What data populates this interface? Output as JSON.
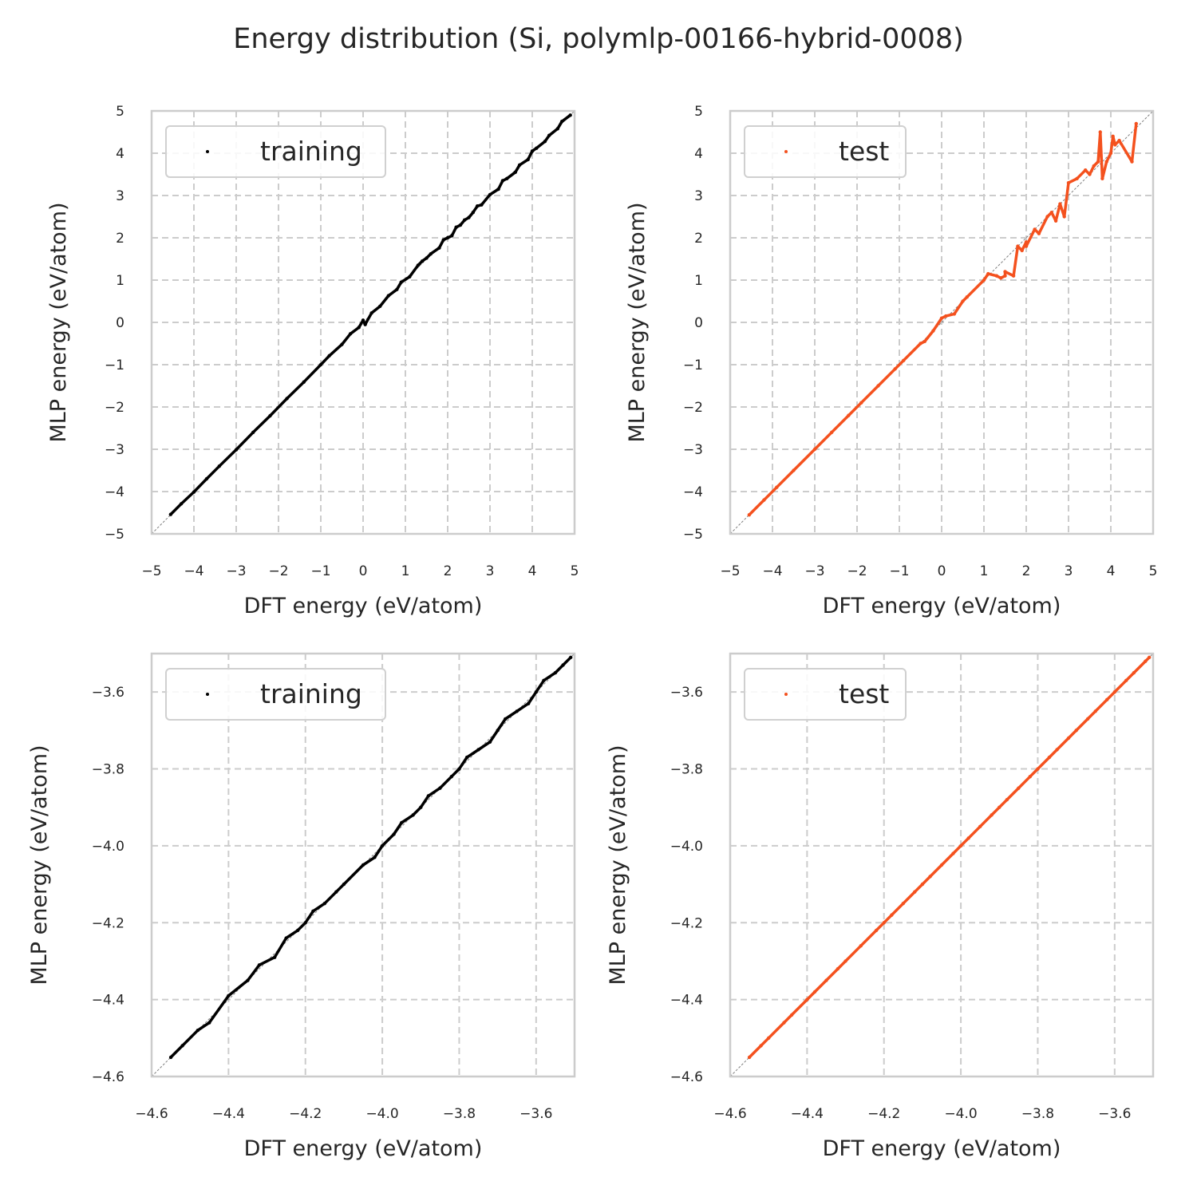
{
  "figure": {
    "title": "Energy distribution (Si, polymlp-00166-hybrid-0008)"
  },
  "colors": {
    "training": "#000000",
    "test": "#f4511e",
    "grid": "#cccccc",
    "frame": "#cccccc",
    "diagonal": "#808080"
  },
  "chart_data": [
    {
      "type": "scatter",
      "xlabel": "DFT energy (eV/atom)",
      "ylabel": "MLP energy (eV/atom)",
      "xlim": [
        -5,
        5
      ],
      "ylim": [
        -5,
        5
      ],
      "xticks": [
        -5,
        -4,
        -3,
        -2,
        -1,
        0,
        1,
        2,
        3,
        4,
        5
      ],
      "yticks": [
        -5,
        -4,
        -3,
        -2,
        -1,
        0,
        1,
        2,
        3,
        4,
        5
      ],
      "xtick_labels": [
        "−5",
        "−4",
        "−3",
        "−2",
        "−1",
        "0",
        "1",
        "2",
        "3",
        "4",
        "5"
      ],
      "ytick_labels": [
        "−5",
        "−4",
        "−3",
        "−2",
        "−1",
        "0",
        "1",
        "2",
        "3",
        "4",
        "5"
      ],
      "grid": true,
      "legend_position": "top-left",
      "series": [
        {
          "name": "training",
          "color": "#000000",
          "points": [
            [
              -4.55,
              -4.54
            ],
            [
              -4.3,
              -4.29
            ],
            [
              -4.0,
              -4.01
            ],
            [
              -3.7,
              -3.7
            ],
            [
              -3.4,
              -3.4
            ],
            [
              -3.0,
              -3.01
            ],
            [
              -2.6,
              -2.6
            ],
            [
              -2.2,
              -2.21
            ],
            [
              -1.8,
              -1.8
            ],
            [
              -1.4,
              -1.41
            ],
            [
              -1.0,
              -1.0
            ],
            [
              -0.8,
              -0.79
            ],
            [
              -0.5,
              -0.52
            ],
            [
              -0.3,
              -0.27
            ],
            [
              -0.1,
              -0.12
            ],
            [
              0.0,
              0.05
            ],
            [
              0.05,
              -0.05
            ],
            [
              0.2,
              0.22
            ],
            [
              0.4,
              0.38
            ],
            [
              0.6,
              0.63
            ],
            [
              0.8,
              0.78
            ],
            [
              0.9,
              0.95
            ],
            [
              1.1,
              1.08
            ],
            [
              1.3,
              1.35
            ],
            [
              1.4,
              1.45
            ],
            [
              1.5,
              1.52
            ],
            [
              1.6,
              1.62
            ],
            [
              1.8,
              1.76
            ],
            [
              1.9,
              1.95
            ],
            [
              2.0,
              2.0
            ],
            [
              2.1,
              2.05
            ],
            [
              2.2,
              2.25
            ],
            [
              2.3,
              2.3
            ],
            [
              2.4,
              2.42
            ],
            [
              2.5,
              2.48
            ],
            [
              2.6,
              2.6
            ],
            [
              2.7,
              2.75
            ],
            [
              2.8,
              2.78
            ],
            [
              3.0,
              3.02
            ],
            [
              3.2,
              3.15
            ],
            [
              3.3,
              3.35
            ],
            [
              3.4,
              3.4
            ],
            [
              3.6,
              3.55
            ],
            [
              3.7,
              3.72
            ],
            [
              3.9,
              3.85
            ],
            [
              4.0,
              4.05
            ],
            [
              4.1,
              4.12
            ],
            [
              4.3,
              4.28
            ],
            [
              4.4,
              4.42
            ],
            [
              4.6,
              4.58
            ],
            [
              4.7,
              4.75
            ],
            [
              4.9,
              4.9
            ]
          ]
        }
      ]
    },
    {
      "type": "scatter",
      "xlabel": "DFT energy (eV/atom)",
      "ylabel": "MLP energy (eV/atom)",
      "xlim": [
        -5,
        5
      ],
      "ylim": [
        -5,
        5
      ],
      "xticks": [
        -5,
        -4,
        -3,
        -2,
        -1,
        0,
        1,
        2,
        3,
        4,
        5
      ],
      "yticks": [
        -5,
        -4,
        -3,
        -2,
        -1,
        0,
        1,
        2,
        3,
        4,
        5
      ],
      "xtick_labels": [
        "−5",
        "−4",
        "−3",
        "−2",
        "−1",
        "0",
        "1",
        "2",
        "3",
        "4",
        "5"
      ],
      "ytick_labels": [
        "−5",
        "−4",
        "−3",
        "−2",
        "−1",
        "0",
        "1",
        "2",
        "3",
        "4",
        "5"
      ],
      "grid": true,
      "legend_position": "top-left",
      "series": [
        {
          "name": "test",
          "color": "#f4511e",
          "points": [
            [
              -4.55,
              -4.55
            ],
            [
              -4.2,
              -4.2
            ],
            [
              -3.9,
              -3.9
            ],
            [
              -3.5,
              -3.5
            ],
            [
              -3.0,
              -3.0
            ],
            [
              -2.6,
              -2.6
            ],
            [
              -2.2,
              -2.2
            ],
            [
              -1.9,
              -1.9
            ],
            [
              -1.5,
              -1.5
            ],
            [
              -1.1,
              -1.1
            ],
            [
              -0.9,
              -0.9
            ],
            [
              -0.5,
              -0.5
            ],
            [
              -0.4,
              -0.45
            ],
            [
              -0.2,
              -0.2
            ],
            [
              0.0,
              0.1
            ],
            [
              0.1,
              0.15
            ],
            [
              0.3,
              0.2
            ],
            [
              0.5,
              0.5
            ],
            [
              0.6,
              0.6
            ],
            [
              1.0,
              1.0
            ],
            [
              1.1,
              1.15
            ],
            [
              1.3,
              1.1
            ],
            [
              1.4,
              1.05
            ],
            [
              1.5,
              1.1
            ],
            [
              1.5,
              1.2
            ],
            [
              1.7,
              1.1
            ],
            [
              1.8,
              1.8
            ],
            [
              1.9,
              1.7
            ],
            [
              2.0,
              1.9
            ],
            [
              2.0,
              1.8
            ],
            [
              2.2,
              2.2
            ],
            [
              2.3,
              2.1
            ],
            [
              2.5,
              2.5
            ],
            [
              2.6,
              2.6
            ],
            [
              2.7,
              2.4
            ],
            [
              2.8,
              2.8
            ],
            [
              2.9,
              2.5
            ],
            [
              3.0,
              3.3
            ],
            [
              3.2,
              3.4
            ],
            [
              3.4,
              3.6
            ],
            [
              3.5,
              3.5
            ],
            [
              3.6,
              3.7
            ],
            [
              3.7,
              3.8
            ],
            [
              3.75,
              4.5
            ],
            [
              3.8,
              3.4
            ],
            [
              3.9,
              3.8
            ],
            [
              4.0,
              4.0
            ],
            [
              4.05,
              4.4
            ],
            [
              4.1,
              4.2
            ],
            [
              4.2,
              4.3
            ],
            [
              4.5,
              3.8
            ],
            [
              4.6,
              4.7
            ]
          ]
        }
      ]
    },
    {
      "type": "scatter",
      "xlabel": "DFT energy (eV/atom)",
      "ylabel": "MLP energy (eV/atom)",
      "xlim": [
        -4.6,
        -3.5
      ],
      "ylim": [
        -4.6,
        -3.5
      ],
      "xticks": [
        -4.6,
        -4.4,
        -4.2,
        -4.0,
        -3.8,
        -3.6
      ],
      "yticks": [
        -4.6,
        -4.4,
        -4.2,
        -4.0,
        -3.8,
        -3.6
      ],
      "xtick_labels": [
        "−4.6",
        "−4.4",
        "−4.2",
        "−4.0",
        "−3.8",
        "−3.6"
      ],
      "ytick_labels": [
        "−4.6",
        "−4.4",
        "−4.2",
        "−4.0",
        "−3.8",
        "−3.6"
      ],
      "grid": true,
      "legend_position": "top-left",
      "series": [
        {
          "name": "training",
          "color": "#000000",
          "points": [
            [
              -4.55,
              -4.55
            ],
            [
              -4.52,
              -4.52
            ],
            [
              -4.48,
              -4.48
            ],
            [
              -4.45,
              -4.46
            ],
            [
              -4.4,
              -4.39
            ],
            [
              -4.35,
              -4.35
            ],
            [
              -4.32,
              -4.31
            ],
            [
              -4.28,
              -4.29
            ],
            [
              -4.25,
              -4.24
            ],
            [
              -4.22,
              -4.22
            ],
            [
              -4.2,
              -4.2
            ],
            [
              -4.18,
              -4.17
            ],
            [
              -4.15,
              -4.15
            ],
            [
              -4.12,
              -4.12
            ],
            [
              -4.1,
              -4.1
            ],
            [
              -4.05,
              -4.05
            ],
            [
              -4.02,
              -4.03
            ],
            [
              -4.0,
              -4.0
            ],
            [
              -3.97,
              -3.97
            ],
            [
              -3.95,
              -3.94
            ],
            [
              -3.92,
              -3.92
            ],
            [
              -3.9,
              -3.9
            ],
            [
              -3.88,
              -3.87
            ],
            [
              -3.85,
              -3.85
            ],
            [
              -3.82,
              -3.82
            ],
            [
              -3.8,
              -3.8
            ],
            [
              -3.78,
              -3.77
            ],
            [
              -3.75,
              -3.75
            ],
            [
              -3.72,
              -3.73
            ],
            [
              -3.7,
              -3.7
            ],
            [
              -3.68,
              -3.67
            ],
            [
              -3.65,
              -3.65
            ],
            [
              -3.62,
              -3.63
            ],
            [
              -3.6,
              -3.6
            ],
            [
              -3.58,
              -3.57
            ],
            [
              -3.55,
              -3.55
            ],
            [
              -3.53,
              -3.53
            ],
            [
              -3.51,
              -3.51
            ]
          ]
        }
      ]
    },
    {
      "type": "scatter",
      "xlabel": "DFT energy (eV/atom)",
      "ylabel": "MLP energy (eV/atom)",
      "xlim": [
        -4.6,
        -3.5
      ],
      "ylim": [
        -4.6,
        -3.5
      ],
      "xticks": [
        -4.6,
        -4.4,
        -4.2,
        -4.0,
        -3.8,
        -3.6
      ],
      "yticks": [
        -4.6,
        -4.4,
        -4.2,
        -4.0,
        -3.8,
        -3.6
      ],
      "xtick_labels": [
        "−4.6",
        "−4.4",
        "−4.2",
        "−4.0",
        "−3.8",
        "−3.6"
      ],
      "ytick_labels": [
        "−4.6",
        "−4.4",
        "−4.2",
        "−4.0",
        "−3.8",
        "−3.6"
      ],
      "grid": true,
      "legend_position": "top-left",
      "series": [
        {
          "name": "test",
          "color": "#f4511e",
          "points": [
            [
              -4.55,
              -4.55
            ],
            [
              -4.52,
              -4.52
            ],
            [
              -4.5,
              -4.5
            ],
            [
              -4.46,
              -4.46
            ],
            [
              -4.44,
              -4.44
            ],
            [
              -4.4,
              -4.4
            ],
            [
              -4.38,
              -4.38
            ],
            [
              -4.35,
              -4.35
            ],
            [
              -4.32,
              -4.32
            ],
            [
              -4.3,
              -4.3
            ],
            [
              -4.26,
              -4.26
            ],
            [
              -4.22,
              -4.22
            ],
            [
              -4.2,
              -4.2
            ],
            [
              -4.18,
              -4.18
            ],
            [
              -4.15,
              -4.15
            ],
            [
              -4.12,
              -4.12
            ],
            [
              -4.1,
              -4.1
            ],
            [
              -4.08,
              -4.08
            ],
            [
              -4.05,
              -4.05
            ],
            [
              -4.02,
              -4.02
            ],
            [
              -4.0,
              -4.0
            ],
            [
              -3.98,
              -3.98
            ],
            [
              -3.95,
              -3.95
            ],
            [
              -3.92,
              -3.92
            ],
            [
              -3.9,
              -3.9
            ],
            [
              -3.88,
              -3.88
            ],
            [
              -3.85,
              -3.85
            ],
            [
              -3.82,
              -3.82
            ],
            [
              -3.8,
              -3.8
            ],
            [
              -3.77,
              -3.77
            ],
            [
              -3.75,
              -3.75
            ],
            [
              -3.72,
              -3.72
            ],
            [
              -3.7,
              -3.7
            ],
            [
              -3.67,
              -3.67
            ],
            [
              -3.65,
              -3.65
            ],
            [
              -3.62,
              -3.62
            ],
            [
              -3.6,
              -3.6
            ],
            [
              -3.57,
              -3.57
            ],
            [
              -3.55,
              -3.55
            ],
            [
              -3.52,
              -3.52
            ],
            [
              -3.51,
              -3.51
            ]
          ]
        }
      ]
    }
  ]
}
